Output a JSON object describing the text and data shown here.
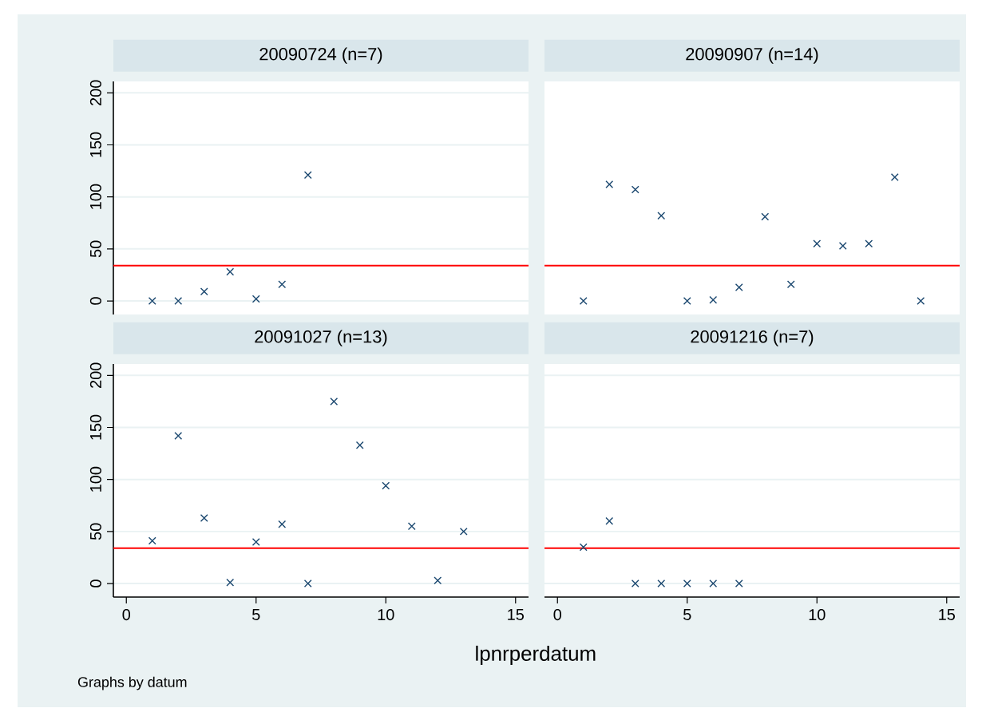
{
  "chart_data": [
    {
      "type": "scatter",
      "title": "20090724 (n=7)",
      "x": [
        1,
        2,
        3,
        4,
        5,
        6,
        7
      ],
      "values": [
        0,
        0,
        9,
        28,
        2,
        16,
        121
      ],
      "color": "#1a476f",
      "marker": "cross",
      "xlim": [
        -0.5,
        15.5
      ],
      "ylim": [
        -13,
        211
      ],
      "xticks": [
        0,
        5,
        10,
        15
      ],
      "yticks": [
        0,
        50,
        100,
        150,
        200
      ],
      "grid": "y",
      "tick_labels": "y",
      "ref_lines": [
        {
          "axis": "y",
          "value": 34,
          "color": "#ff0000"
        }
      ]
    },
    {
      "type": "scatter",
      "title": "20090907 (n=14)",
      "x": [
        1,
        2,
        3,
        4,
        5,
        6,
        7,
        8,
        9,
        10,
        11,
        12,
        13,
        14
      ],
      "values": [
        0,
        112,
        107,
        82,
        0,
        1,
        13,
        81,
        16,
        55,
        53,
        55,
        119,
        0
      ],
      "color": "#1a476f",
      "marker": "cross",
      "xlim": [
        -0.5,
        15.5
      ],
      "ylim": [
        -13,
        211
      ],
      "xticks": [
        0,
        5,
        10,
        15
      ],
      "yticks": [
        0,
        50,
        100,
        150,
        200
      ],
      "grid": "y",
      "tick_labels": false,
      "ref_lines": [
        {
          "axis": "y",
          "value": 34,
          "color": "#ff0000"
        }
      ]
    },
    {
      "type": "scatter",
      "title": "20091027 (n=13)",
      "xlabel": "lpnrperdatum",
      "annotations": [
        "Graphs by datum"
      ],
      "x": [
        1,
        2,
        3,
        4,
        5,
        6,
        7,
        8,
        9,
        10,
        11,
        12,
        13
      ],
      "values": [
        41,
        142,
        63,
        1,
        40,
        57,
        0,
        175,
        133,
        94,
        55,
        3,
        50
      ],
      "color": "#1a476f",
      "marker": "cross",
      "xlim": [
        -0.5,
        15.5
      ],
      "ylim": [
        -13,
        211
      ],
      "xticks": [
        0,
        5,
        10,
        15
      ],
      "yticks": [
        0,
        50,
        100,
        150,
        200
      ],
      "grid": "y",
      "ref_lines": [
        {
          "axis": "y",
          "value": 34,
          "color": "#ff0000"
        }
      ]
    },
    {
      "type": "scatter",
      "title": "20091216 (n=7)",
      "x": [
        1,
        2,
        3,
        4,
        5,
        6,
        7
      ],
      "values": [
        35,
        60,
        0,
        0,
        0,
        0,
        0
      ],
      "color": "#1a476f",
      "marker": "cross",
      "xlim": [
        -0.5,
        15.5
      ],
      "ylim": [
        -13,
        211
      ],
      "xticks": [
        0,
        5,
        10,
        15
      ],
      "yticks": [
        0,
        50,
        100,
        150,
        200
      ],
      "grid": "y",
      "tick_labels": "x",
      "ref_lines": [
        {
          "axis": "y",
          "value": 34,
          "color": "#ff0000"
        }
      ]
    }
  ]
}
